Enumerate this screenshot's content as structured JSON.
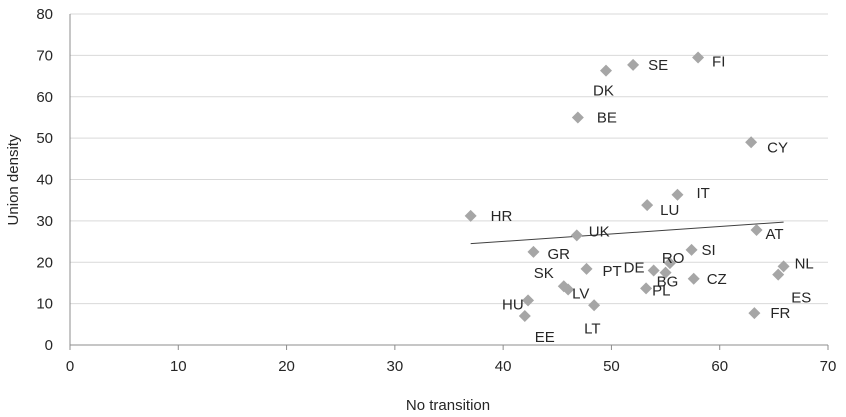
{
  "chart_data": {
    "type": "scatter",
    "title": "",
    "xlabel": "No transition",
    "ylabel": "Union density",
    "xlim": [
      0,
      70
    ],
    "ylim": [
      0,
      80
    ],
    "xticks": [
      "0",
      "10",
      "20",
      "30",
      "40",
      "50",
      "60",
      "70"
    ],
    "yticks": [
      "0",
      "10",
      "20",
      "30",
      "40",
      "50",
      "60",
      "70",
      "80"
    ],
    "grid": "horizontal",
    "legend": "none",
    "marker": "diamond",
    "marker_color": "#a6a6a6",
    "points": [
      {
        "label": "FI",
        "x": 58.0,
        "y": 69.5
      },
      {
        "label": "SE",
        "x": 52.0,
        "y": 67.7
      },
      {
        "label": "DK",
        "x": 49.5,
        "y": 66.3
      },
      {
        "label": "BE",
        "x": 46.9,
        "y": 55.0
      },
      {
        "label": "CY",
        "x": 62.9,
        "y": 49.0
      },
      {
        "label": "IT",
        "x": 56.1,
        "y": 36.3
      },
      {
        "label": "LU",
        "x": 53.3,
        "y": 33.8
      },
      {
        "label": "HR",
        "x": 37.0,
        "y": 31.2
      },
      {
        "label": "AT",
        "x": 63.4,
        "y": 27.8
      },
      {
        "label": "UK",
        "x": 46.8,
        "y": 26.5
      },
      {
        "label": "SI",
        "x": 57.4,
        "y": 23.0
      },
      {
        "label": "GR",
        "x": 42.8,
        "y": 22.5
      },
      {
        "label": "RO",
        "x": 55.4,
        "y": 19.8
      },
      {
        "label": "NL",
        "x": 65.9,
        "y": 19.0
      },
      {
        "label": "PT",
        "x": 47.7,
        "y": 18.4
      },
      {
        "label": "DE",
        "x": 53.9,
        "y": 18.0
      },
      {
        "label": "BG",
        "x": 55.0,
        "y": 17.5
      },
      {
        "label": "ES",
        "x": 65.4,
        "y": 17.0
      },
      {
        "label": "CZ",
        "x": 57.6,
        "y": 16.0
      },
      {
        "label": "SK",
        "x": 45.6,
        "y": 14.2
      },
      {
        "label": "PL",
        "x": 53.2,
        "y": 13.7
      },
      {
        "label": "LV",
        "x": 46.0,
        "y": 13.4
      },
      {
        "label": "HU",
        "x": 42.3,
        "y": 10.8
      },
      {
        "label": "LT",
        "x": 48.4,
        "y": 9.6
      },
      {
        "label": "FR",
        "x": 63.2,
        "y": 7.7
      },
      {
        "label": "EE",
        "x": 42.0,
        "y": 7.0
      }
    ],
    "trendline": {
      "x": [
        37.0,
        65.9
      ],
      "y": [
        24.5,
        29.7
      ],
      "color": "#404040"
    }
  }
}
